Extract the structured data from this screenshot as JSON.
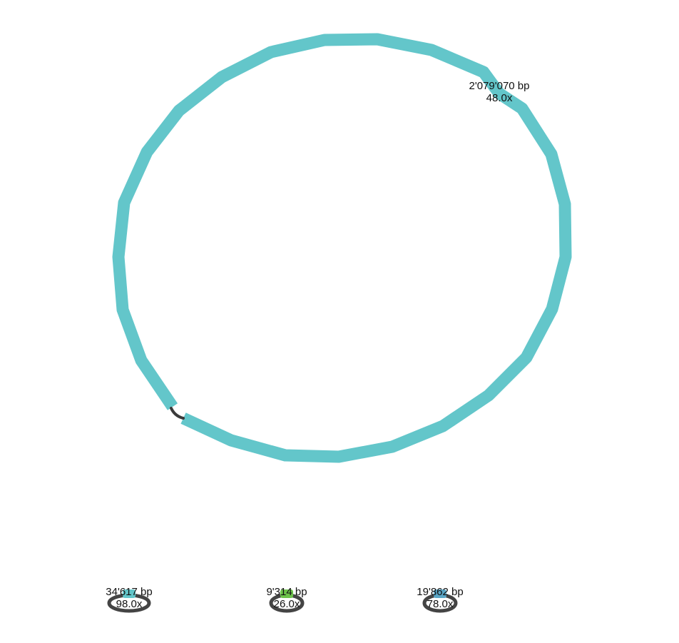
{
  "graph": {
    "main_contig": {
      "length_label": "2'079'070 bp",
      "coverage_label": "48.0x",
      "color": "#63c6ca",
      "link_color": "#3a3a3a"
    },
    "small_contigs": [
      {
        "length_label": "34'617 bp",
        "coverage_label": "98.0x",
        "color": "#63c6ca"
      },
      {
        "length_label": "9'314 bp",
        "coverage_label": "26.0x",
        "color": "#6cc24a"
      },
      {
        "length_label": "19'862 bp",
        "coverage_label": "78.0x",
        "color": "#5aa6c6"
      }
    ],
    "loop_color": "#444444"
  }
}
